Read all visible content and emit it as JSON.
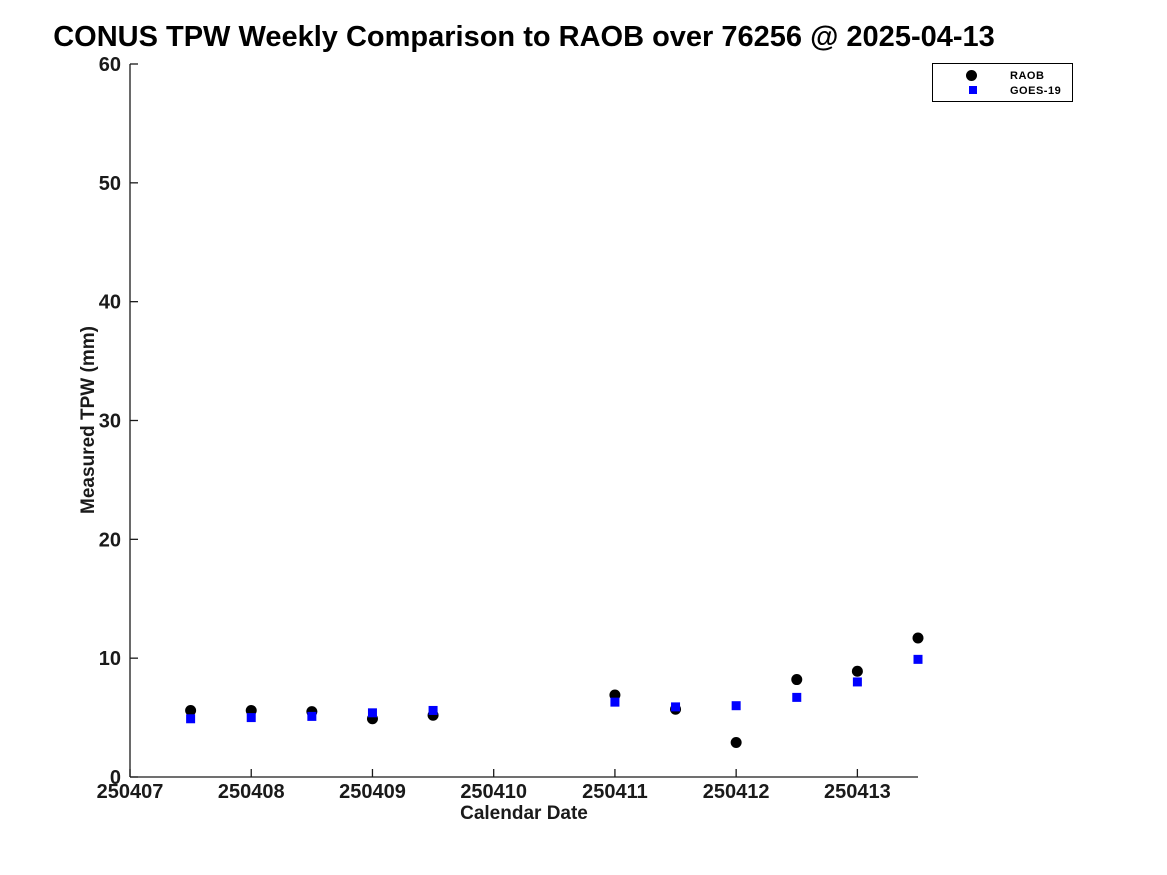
{
  "figure": {
    "background": "#ffffff"
  },
  "chart_data": {
    "type": "scatter",
    "title": "CONUS TPW Weekly Comparison to RAOB over 76256 @ 2025-04-13",
    "xlabel": "Calendar Date",
    "ylabel": "Measured TPW (mm)",
    "xlim": [
      250407,
      250413.5
    ],
    "ylim": [
      0,
      60
    ],
    "xticks": [
      250407,
      250408,
      250409,
      250410,
      250411,
      250412,
      250413
    ],
    "yticks": [
      0,
      10,
      20,
      30,
      40,
      50,
      60
    ],
    "grid": false,
    "legend_position": "top-right",
    "axis_color": "#1a1a1a",
    "x": [
      250407.5,
      250408,
      250408.5,
      250409,
      250409.5,
      250411,
      250411.5,
      250412,
      250412.5,
      250413,
      250413.5
    ],
    "series": [
      {
        "name": "RAOB",
        "marker": "circle",
        "color": "#000000",
        "values": [
          5.6,
          5.6,
          5.5,
          4.9,
          5.2,
          6.9,
          5.7,
          2.9,
          8.2,
          8.9,
          11.7
        ]
      },
      {
        "name": "GOES-19",
        "marker": "square",
        "color": "#0000ff",
        "values": [
          4.9,
          5.0,
          5.1,
          5.4,
          5.6,
          6.3,
          5.9,
          6.0,
          6.7,
          8.0,
          9.9
        ]
      }
    ]
  }
}
